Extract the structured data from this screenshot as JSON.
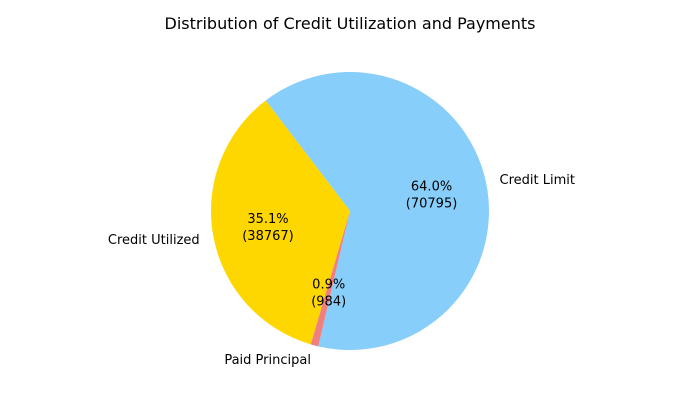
{
  "chart_data": {
    "type": "pie",
    "title": "Distribution of Credit Utilization and Payments",
    "slices": [
      {
        "label": "Credit Limit",
        "value": 70795,
        "percent_text": "64.0%",
        "value_text": "(70795)",
        "color": "#87CEFA"
      },
      {
        "label": "Credit Utilized",
        "value": 38767,
        "percent_text": "35.1%",
        "value_text": "(38767)",
        "color": "#FFD700"
      },
      {
        "label": "Paid Principal",
        "value": 984,
        "percent_text": "0.9%",
        "value_text": "(984)",
        "color": "#F08080"
      }
    ]
  }
}
